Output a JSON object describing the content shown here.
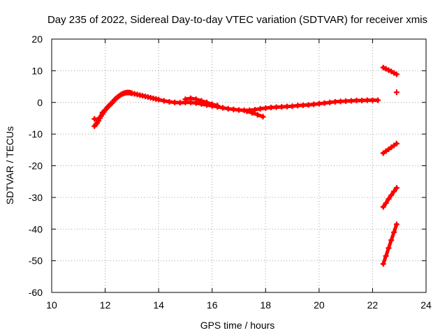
{
  "chart_data": {
    "type": "scatter",
    "title": "Day 235 of 2022, Sidereal Day-to-day VTEC variation (SDTVAR) for receiver xmis",
    "xlabel": "GPS time / hours",
    "ylabel": "SDTVAR / TECUs",
    "xlim": [
      10,
      24
    ],
    "ylim": [
      -60,
      20
    ],
    "xticks": [
      10,
      12,
      14,
      16,
      18,
      20,
      22,
      24
    ],
    "xtick_labels": [
      "10",
      "12",
      "14",
      "16",
      "18",
      "20",
      "22",
      "24"
    ],
    "yticks": [
      -60,
      -50,
      -40,
      -30,
      -20,
      -10,
      0,
      10,
      20
    ],
    "ytick_labels": [
      "-60",
      "-50",
      "-40",
      "-30",
      "-20",
      "-10",
      "0",
      "10",
      "20"
    ],
    "grid": true,
    "marker": "+",
    "point_color": "#ff0000",
    "series": [
      {
        "x": [
          11.6,
          11.65,
          11.7,
          11.75,
          11.8,
          11.85,
          11.9,
          11.95,
          12.0,
          12.05,
          12.1,
          12.15,
          12.2,
          12.25,
          12.3,
          12.35,
          12.4,
          12.45,
          12.5,
          12.55,
          12.6,
          12.65,
          12.7,
          12.75,
          12.8,
          12.85,
          12.9,
          12.95,
          13.0,
          13.1,
          13.2,
          13.3,
          13.4,
          13.5,
          13.6,
          13.7,
          13.8,
          13.9,
          14.0,
          14.2,
          14.4,
          14.6,
          14.8,
          15.0,
          15.2,
          15.4,
          15.6,
          15.8,
          16.0,
          16.2,
          16.4,
          16.6,
          16.8,
          17.0,
          17.2,
          17.4,
          17.6,
          17.8,
          18.0,
          18.2,
          18.4,
          18.6,
          18.8,
          19.0,
          19.2,
          19.4,
          19.6,
          19.8,
          20.0,
          20.2,
          20.4,
          20.6,
          20.8,
          21.0,
          21.2,
          21.4,
          21.6,
          21.8,
          22.0,
          22.2
        ],
        "y": [
          -7.5,
          -7.0,
          -6.5,
          -5.8,
          -5.0,
          -4.3,
          -3.6,
          -3.0,
          -2.4,
          -1.9,
          -1.4,
          -1.0,
          -0.6,
          -0.2,
          0.3,
          0.8,
          1.2,
          1.6,
          1.9,
          2.2,
          2.5,
          2.7,
          2.9,
          3.0,
          3.1,
          3.1,
          3.1,
          3.0,
          2.9,
          2.7,
          2.5,
          2.3,
          2.1,
          1.9,
          1.7,
          1.5,
          1.3,
          1.1,
          0.9,
          0.5,
          0.2,
          0.0,
          -0.1,
          0.0,
          0.0,
          -0.2,
          -0.5,
          -0.8,
          -1.1,
          -1.4,
          -1.7,
          -2.0,
          -2.2,
          -2.4,
          -2.5,
          -2.5,
          -2.3,
          -2.0,
          -1.8,
          -1.6,
          -1.5,
          -1.4,
          -1.3,
          -1.2,
          -1.0,
          -0.9,
          -0.8,
          -0.6,
          -0.4,
          -0.2,
          0.0,
          0.2,
          0.3,
          0.4,
          0.5,
          0.6,
          0.6,
          0.7,
          0.7,
          0.7
        ]
      },
      {
        "x": [
          11.6,
          11.7,
          11.8,
          11.9
        ],
        "y": [
          -5.2,
          -5.6,
          -4.8,
          -3.2
        ]
      },
      {
        "x": [
          15.0,
          15.2,
          15.4,
          15.6,
          15.8,
          16.0,
          16.2
        ],
        "y": [
          1.0,
          1.3,
          1.0,
          0.5,
          0.0,
          -0.6,
          -1.0
        ]
      },
      {
        "x": [
          17.3,
          17.5,
          17.7,
          17.9
        ],
        "y": [
          -2.8,
          -3.3,
          -3.9,
          -4.5
        ]
      },
      {
        "x": [
          22.4,
          22.5,
          22.6,
          22.7,
          22.8,
          22.9
        ],
        "y": [
          11.0,
          10.6,
          10.2,
          9.8,
          9.3,
          8.9
        ]
      },
      {
        "x": [
          22.9
        ],
        "y": [
          3.2
        ]
      },
      {
        "x": [
          22.4,
          22.5,
          22.6,
          22.7,
          22.8,
          22.9
        ],
        "y": [
          -16.0,
          -15.4,
          -14.8,
          -14.2,
          -13.6,
          -13.0
        ]
      },
      {
        "x": [
          22.4,
          22.5,
          22.6,
          22.7,
          22.8,
          22.9
        ],
        "y": [
          -33.0,
          -31.8,
          -30.5,
          -29.3,
          -28.1,
          -27.0
        ]
      },
      {
        "x": [
          22.4,
          22.5,
          22.6,
          22.7,
          22.8,
          22.9
        ],
        "y": [
          -51.0,
          -48.5,
          -46.0,
          -43.5,
          -41.0,
          -38.5
        ]
      }
    ]
  }
}
